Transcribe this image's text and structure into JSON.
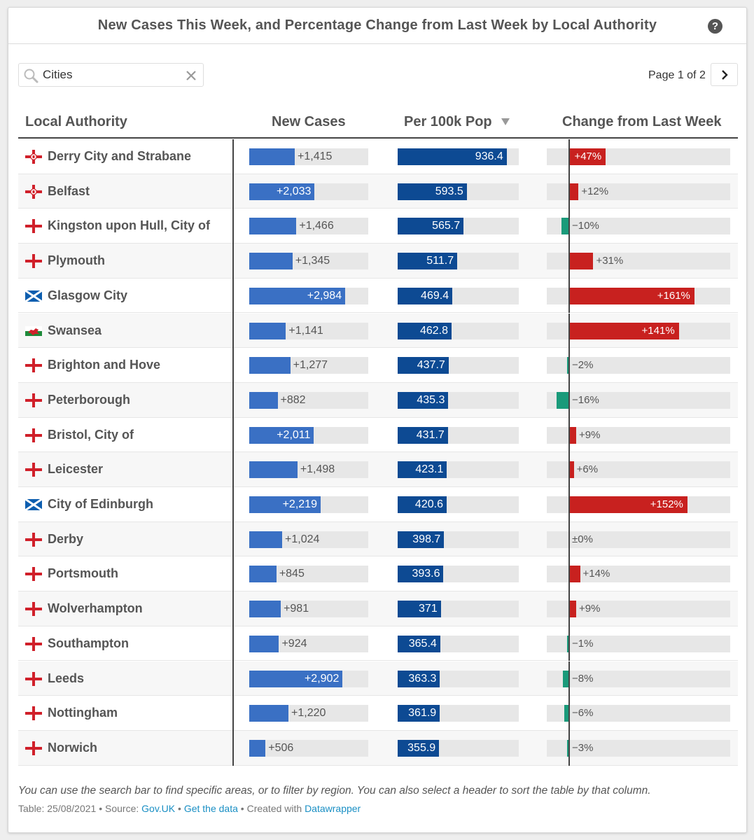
{
  "title": "New Cases This Week, and Percentage Change from Last Week by Local Authority",
  "help_label": "?",
  "search": {
    "value": "Cities",
    "placeholder": ""
  },
  "pager": {
    "text": "Page 1 of 2"
  },
  "headers": {
    "authority": "Local Authority",
    "new_cases": "New Cases",
    "per_100k": "Per 100k Pop",
    "change": "Change from Last Week"
  },
  "colors": {
    "cases_bar": "#3a70c4",
    "per_bar": "#0d4a93",
    "change_up": "#c8211f",
    "change_down": "#1a9a7a",
    "track": "#e7e7e7"
  },
  "scales": {
    "new_cases_max": 3700,
    "per_100k_max": 1040,
    "change_max_pct": 180
  },
  "rows": [
    {
      "authority": "Derry City and Strabane",
      "flag": "northern-ireland-flag",
      "new_cases": 1415,
      "new_cases_label": "+1,415",
      "per_100k": 936.4,
      "per_100k_label": "936.4",
      "change": 47,
      "change_label": "+47%"
    },
    {
      "authority": "Belfast",
      "flag": "northern-ireland-flag",
      "new_cases": 2033,
      "new_cases_label": "+2,033",
      "per_100k": 593.5,
      "per_100k_label": "593.5",
      "change": 12,
      "change_label": "+12%"
    },
    {
      "authority": "Kingston upon Hull, City of",
      "flag": "england-flag",
      "new_cases": 1466,
      "new_cases_label": "+1,466",
      "per_100k": 565.7,
      "per_100k_label": "565.7",
      "change": -10,
      "change_label": "−10%"
    },
    {
      "authority": "Plymouth",
      "flag": "england-flag",
      "new_cases": 1345,
      "new_cases_label": "+1,345",
      "per_100k": 511.7,
      "per_100k_label": "511.7",
      "change": 31,
      "change_label": "+31%"
    },
    {
      "authority": "Glasgow City",
      "flag": "scotland-flag",
      "new_cases": 2984,
      "new_cases_label": "+2,984",
      "per_100k": 469.4,
      "per_100k_label": "469.4",
      "change": 161,
      "change_label": "+161%"
    },
    {
      "authority": "Swansea",
      "flag": "wales-flag",
      "new_cases": 1141,
      "new_cases_label": "+1,141",
      "per_100k": 462.8,
      "per_100k_label": "462.8",
      "change": 141,
      "change_label": "+141%"
    },
    {
      "authority": "Brighton and Hove",
      "flag": "england-flag",
      "new_cases": 1277,
      "new_cases_label": "+1,277",
      "per_100k": 437.7,
      "per_100k_label": "437.7",
      "change": -2,
      "change_label": "−2%"
    },
    {
      "authority": "Peterborough",
      "flag": "england-flag",
      "new_cases": 882,
      "new_cases_label": "+882",
      "per_100k": 435.3,
      "per_100k_label": "435.3",
      "change": -16,
      "change_label": "−16%"
    },
    {
      "authority": "Bristol, City of",
      "flag": "england-flag",
      "new_cases": 2011,
      "new_cases_label": "+2,011",
      "per_100k": 431.7,
      "per_100k_label": "431.7",
      "change": 9,
      "change_label": "+9%"
    },
    {
      "authority": "Leicester",
      "flag": "england-flag",
      "new_cases": 1498,
      "new_cases_label": "+1,498",
      "per_100k": 423.1,
      "per_100k_label": "423.1",
      "change": 6,
      "change_label": "+6%"
    },
    {
      "authority": "City of Edinburgh",
      "flag": "scotland-flag",
      "new_cases": 2219,
      "new_cases_label": "+2,219",
      "per_100k": 420.6,
      "per_100k_label": "420.6",
      "change": 152,
      "change_label": "+152%"
    },
    {
      "authority": "Derby",
      "flag": "england-flag",
      "new_cases": 1024,
      "new_cases_label": "+1,024",
      "per_100k": 398.7,
      "per_100k_label": "398.7",
      "change": 0,
      "change_label": "±0%"
    },
    {
      "authority": "Portsmouth",
      "flag": "england-flag",
      "new_cases": 845,
      "new_cases_label": "+845",
      "per_100k": 393.6,
      "per_100k_label": "393.6",
      "change": 14,
      "change_label": "+14%"
    },
    {
      "authority": "Wolverhampton",
      "flag": "england-flag",
      "new_cases": 981,
      "new_cases_label": "+981",
      "per_100k": 371,
      "per_100k_label": "371",
      "change": 9,
      "change_label": "+9%"
    },
    {
      "authority": "Southampton",
      "flag": "england-flag",
      "new_cases": 924,
      "new_cases_label": "+924",
      "per_100k": 365.4,
      "per_100k_label": "365.4",
      "change": -1,
      "change_label": "−1%"
    },
    {
      "authority": "Leeds",
      "flag": "england-flag",
      "new_cases": 2902,
      "new_cases_label": "+2,902",
      "per_100k": 363.3,
      "per_100k_label": "363.3",
      "change": -8,
      "change_label": "−8%"
    },
    {
      "authority": "Nottingham",
      "flag": "england-flag",
      "new_cases": 1220,
      "new_cases_label": "+1,220",
      "per_100k": 361.9,
      "per_100k_label": "361.9",
      "change": -6,
      "change_label": "−6%"
    },
    {
      "authority": "Norwich",
      "flag": "england-flag",
      "new_cases": 506,
      "new_cases_label": "+506",
      "per_100k": 355.9,
      "per_100k_label": "355.9",
      "change": -3,
      "change_label": "−3%"
    }
  ],
  "footer": {
    "note": "You can use the search bar to find specific areas, or to filter by region. You can also select a header to sort the table by that column.",
    "table_date": "Table: 25/08/2021",
    "sep": " • ",
    "source_prefix": "Source: ",
    "source_link": "Gov.UK",
    "get_data": "Get the data",
    "created_prefix": "Created with ",
    "created_link": "Datawrapper"
  }
}
